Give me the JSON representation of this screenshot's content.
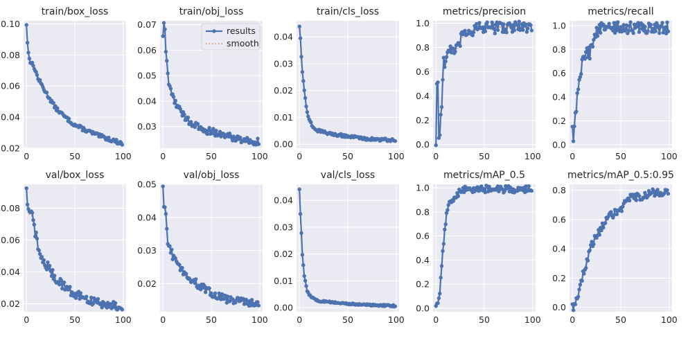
{
  "colors": {
    "plot_bg": "#eaeaf2",
    "grid": "#ffffff",
    "results": "#4c72b0",
    "smooth": "#dd8452"
  },
  "chart_data": [
    {
      "type": "line",
      "title": "train/box_loss",
      "xlim": [
        -3,
        103
      ],
      "ylim": [
        0.02,
        0.102
      ],
      "xticks": [
        0,
        50,
        100
      ],
      "xtick_labels": [
        "0",
        "50",
        "100"
      ],
      "yticks": [
        0.02,
        0.04,
        0.06,
        0.08,
        0.1
      ],
      "ytick_labels": [
        "0.02",
        "0.04",
        "0.06",
        "0.08",
        "0.10"
      ],
      "keypoints": [
        [
          0,
          0.1
        ],
        [
          1,
          0.088
        ],
        [
          2,
          0.081
        ],
        [
          4,
          0.076
        ],
        [
          8,
          0.072
        ],
        [
          12,
          0.065
        ],
        [
          20,
          0.056
        ],
        [
          30,
          0.046
        ],
        [
          40,
          0.04
        ],
        [
          50,
          0.035
        ],
        [
          60,
          0.032
        ],
        [
          75,
          0.028
        ],
        [
          90,
          0.025
        ],
        [
          99,
          0.023
        ]
      ],
      "amp": 0.0012,
      "show_legend": false
    },
    {
      "type": "line",
      "title": "train/obj_loss",
      "xlim": [
        -3,
        103
      ],
      "ylim": [
        0.0215,
        0.0715
      ],
      "xticks": [
        0,
        50,
        100
      ],
      "xtick_labels": [
        "0",
        "50",
        "100"
      ],
      "yticks": [
        0.03,
        0.04,
        0.05,
        0.06,
        0.07
      ],
      "ytick_labels": [
        "0.03",
        "0.04",
        "0.05",
        "0.06",
        "0.07"
      ],
      "keypoints": [
        [
          0,
          0.066
        ],
        [
          1,
          0.07
        ],
        [
          2,
          0.067
        ],
        [
          3,
          0.06
        ],
        [
          4,
          0.055
        ],
        [
          6,
          0.047
        ],
        [
          10,
          0.042
        ],
        [
          15,
          0.038
        ],
        [
          20,
          0.035
        ],
        [
          30,
          0.031
        ],
        [
          40,
          0.029
        ],
        [
          60,
          0.027
        ],
        [
          80,
          0.025
        ],
        [
          99,
          0.024
        ]
      ],
      "amp": 0.0014,
      "show_legend": true,
      "legend": [
        "results",
        "smooth"
      ]
    },
    {
      "type": "line",
      "title": "train/cls_loss",
      "xlim": [
        -3,
        103
      ],
      "ylim": [
        -0.0015,
        0.046
      ],
      "xticks": [
        0,
        50,
        100
      ],
      "xtick_labels": [
        "0",
        "50",
        "100"
      ],
      "yticks": [
        0,
        0.01,
        0.02,
        0.03,
        0.04
      ],
      "ytick_labels": [
        "0.00",
        "0.01",
        "0.02",
        "0.03",
        "0.04"
      ],
      "keypoints": [
        [
          0,
          0.044
        ],
        [
          1,
          0.04
        ],
        [
          2,
          0.033
        ],
        [
          3,
          0.027
        ],
        [
          5,
          0.02
        ],
        [
          7,
          0.014
        ],
        [
          10,
          0.009
        ],
        [
          15,
          0.006
        ],
        [
          20,
          0.005
        ],
        [
          30,
          0.004
        ],
        [
          50,
          0.003
        ],
        [
          70,
          0.002
        ],
        [
          99,
          0.0015
        ]
      ],
      "amp": 0.0005,
      "show_legend": false
    },
    {
      "type": "line",
      "title": "metrics/precision",
      "xlim": [
        -3,
        103
      ],
      "ylim": [
        -0.03,
        1.02
      ],
      "xticks": [
        0,
        50,
        100
      ],
      "xtick_labels": [
        "0",
        "50",
        "100"
      ],
      "yticks": [
        0,
        0.2,
        0.4,
        0.6,
        0.8,
        1.0
      ],
      "ytick_labels": [
        "0.0",
        "0.2",
        "0.4",
        "0.6",
        "0.8",
        "1.0"
      ],
      "keypoints": [
        [
          0,
          0.0
        ],
        [
          1,
          0.52
        ],
        [
          2,
          0.53
        ],
        [
          3,
          0.05
        ],
        [
          4,
          0.1
        ],
        [
          6,
          0.35
        ],
        [
          8,
          0.7
        ],
        [
          10,
          0.65
        ],
        [
          12,
          0.75
        ],
        [
          15,
          0.8
        ],
        [
          20,
          0.75
        ],
        [
          25,
          0.85
        ],
        [
          30,
          0.92
        ],
        [
          40,
          0.95
        ],
        [
          50,
          0.96
        ],
        [
          70,
          0.97
        ],
        [
          99,
          0.97
        ]
      ],
      "amp": 0.05,
      "show_legend": false
    },
    {
      "type": "line",
      "title": "metrics/recall",
      "xlim": [
        -3,
        103
      ],
      "ylim": [
        -0.03,
        1.04
      ],
      "xticks": [
        0,
        50,
        100
      ],
      "xtick_labels": [
        "0",
        "50",
        "100"
      ],
      "yticks": [
        0,
        0.2,
        0.4,
        0.6,
        0.8,
        1.0
      ],
      "ytick_labels": [
        "0.0",
        "0.2",
        "0.4",
        "0.6",
        "0.8",
        "1.0"
      ],
      "keypoints": [
        [
          0,
          0.15
        ],
        [
          1,
          0.02
        ],
        [
          2,
          0.15
        ],
        [
          3,
          0.25
        ],
        [
          5,
          0.4
        ],
        [
          8,
          0.6
        ],
        [
          12,
          0.75
        ],
        [
          15,
          0.8
        ],
        [
          18,
          0.75
        ],
        [
          20,
          0.85
        ],
        [
          25,
          0.95
        ],
        [
          30,
          0.98
        ],
        [
          50,
          0.98
        ],
        [
          99,
          0.98
        ]
      ],
      "amp": 0.05,
      "show_legend": false
    },
    {
      "type": "line",
      "title": "val/box_loss",
      "xlim": [
        -3,
        103
      ],
      "ylim": [
        0.015,
        0.095
      ],
      "xticks": [
        0,
        50,
        100
      ],
      "xtick_labels": [
        "0",
        "50",
        "100"
      ],
      "yticks": [
        0.02,
        0.04,
        0.06,
        0.08
      ],
      "ytick_labels": [
        "0.02",
        "0.04",
        "0.06",
        "0.08"
      ],
      "keypoints": [
        [
          0,
          0.092
        ],
        [
          1,
          0.08
        ],
        [
          3,
          0.076
        ],
        [
          6,
          0.075
        ],
        [
          10,
          0.062
        ],
        [
          15,
          0.048
        ],
        [
          20,
          0.045
        ],
        [
          30,
          0.036
        ],
        [
          40,
          0.031
        ],
        [
          50,
          0.026
        ],
        [
          60,
          0.023
        ],
        [
          80,
          0.02
        ],
        [
          99,
          0.018
        ]
      ],
      "amp": 0.003,
      "show_legend": false
    },
    {
      "type": "line",
      "title": "val/obj_loss",
      "xlim": [
        -3,
        103
      ],
      "ylim": [
        0.0115,
        0.05
      ],
      "xticks": [
        0,
        50,
        100
      ],
      "xtick_labels": [
        "0",
        "50",
        "100"
      ],
      "yticks": [
        0.02,
        0.03,
        0.04,
        0.05
      ],
      "ytick_labels": [
        "0.02",
        "0.03",
        "0.04",
        "0.05"
      ],
      "keypoints": [
        [
          0,
          0.049
        ],
        [
          1,
          0.044
        ],
        [
          3,
          0.04
        ],
        [
          5,
          0.033
        ],
        [
          8,
          0.03
        ],
        [
          12,
          0.027
        ],
        [
          20,
          0.024
        ],
        [
          30,
          0.021
        ],
        [
          40,
          0.019
        ],
        [
          50,
          0.017
        ],
        [
          70,
          0.015
        ],
        [
          99,
          0.014
        ]
      ],
      "amp": 0.0012,
      "show_legend": false
    },
    {
      "type": "line",
      "title": "val/cls_loss",
      "xlim": [
        -3,
        103
      ],
      "ylim": [
        -0.0015,
        0.046
      ],
      "xticks": [
        0,
        50,
        100
      ],
      "xtick_labels": [
        "0",
        "50",
        "100"
      ],
      "yticks": [
        0,
        0.01,
        0.02,
        0.03,
        0.04
      ],
      "ytick_labels": [
        "0.00",
        "0.01",
        "0.02",
        "0.03",
        "0.04"
      ],
      "keypoints": [
        [
          0,
          0.044
        ],
        [
          1,
          0.035
        ],
        [
          2,
          0.028
        ],
        [
          3,
          0.02
        ],
        [
          5,
          0.012
        ],
        [
          8,
          0.006
        ],
        [
          12,
          0.004
        ],
        [
          20,
          0.0025
        ],
        [
          40,
          0.0018
        ],
        [
          60,
          0.0012
        ],
        [
          99,
          0.0007
        ]
      ],
      "amp": 0.0003,
      "show_legend": false
    },
    {
      "type": "line",
      "title": "metrics/mAP_0.5",
      "xlim": [
        -3,
        103
      ],
      "ylim": [
        -0.03,
        1.03
      ],
      "xticks": [
        0,
        50,
        100
      ],
      "xtick_labels": [
        "0",
        "50",
        "100"
      ],
      "yticks": [
        0,
        0.2,
        0.4,
        0.6,
        0.8,
        1.0
      ],
      "ytick_labels": [
        "0.0",
        "0.2",
        "0.4",
        "0.6",
        "0.8",
        "1.0"
      ],
      "keypoints": [
        [
          0,
          0.0
        ],
        [
          2,
          0.05
        ],
        [
          4,
          0.15
        ],
        [
          6,
          0.38
        ],
        [
          8,
          0.55
        ],
        [
          10,
          0.72
        ],
        [
          12,
          0.82
        ],
        [
          15,
          0.88
        ],
        [
          20,
          0.93
        ],
        [
          25,
          0.97
        ],
        [
          30,
          0.99
        ],
        [
          50,
          0.99
        ],
        [
          99,
          0.99
        ]
      ],
      "amp": 0.03,
      "show_legend": false
    },
    {
      "type": "line",
      "title": "metrics/mAP_0.5:0.95",
      "xlim": [
        -3,
        103
      ],
      "ylim": [
        -0.03,
        0.84
      ],
      "xticks": [
        0,
        50,
        100
      ],
      "xtick_labels": [
        "0",
        "50",
        "100"
      ],
      "yticks": [
        0,
        0.2,
        0.4,
        0.6,
        0.8
      ],
      "ytick_labels": [
        "0.0",
        "0.2",
        "0.4",
        "0.6",
        "0.8"
      ],
      "keypoints": [
        [
          0,
          0.0
        ],
        [
          3,
          0.03
        ],
        [
          6,
          0.08
        ],
        [
          10,
          0.2
        ],
        [
          15,
          0.32
        ],
        [
          20,
          0.42
        ],
        [
          30,
          0.55
        ],
        [
          40,
          0.63
        ],
        [
          50,
          0.68
        ],
        [
          60,
          0.74
        ],
        [
          70,
          0.76
        ],
        [
          85,
          0.78
        ],
        [
          99,
          0.79
        ]
      ],
      "amp": 0.03,
      "show_legend": false
    }
  ]
}
